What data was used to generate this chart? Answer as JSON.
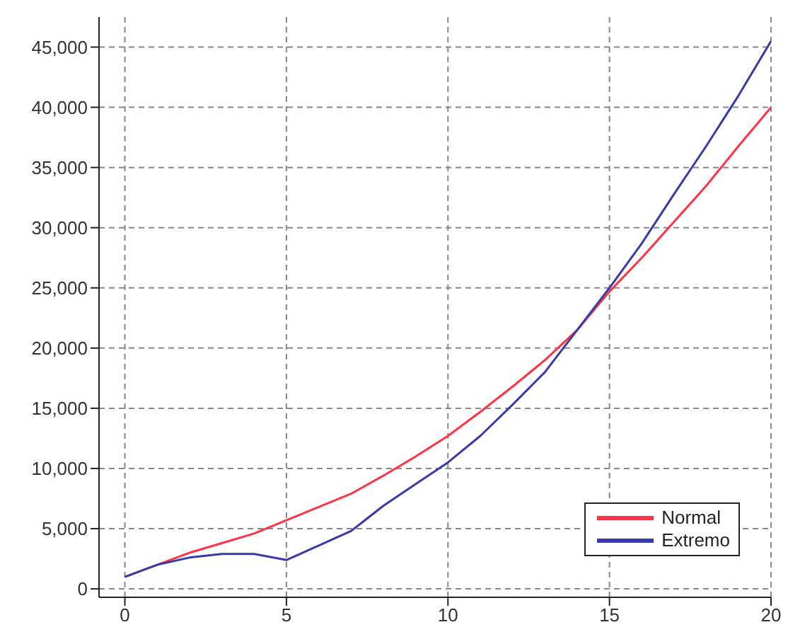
{
  "chart_data": {
    "type": "line",
    "x": [
      0,
      1,
      2,
      3,
      4,
      5,
      6,
      7,
      8,
      9,
      10,
      11,
      12,
      13,
      14,
      15,
      16,
      17,
      18,
      19,
      20
    ],
    "series": [
      {
        "name": "Normal",
        "color": "#ff3344",
        "values": [
          1000,
          2000,
          3000,
          3800,
          4600,
          5700,
          6800,
          7900,
          9400,
          11000,
          12700,
          14700,
          16800,
          19000,
          21500,
          24700,
          27500,
          30500,
          33500,
          36800,
          40000
        ]
      },
      {
        "name": "Extremo",
        "color": "#3a3aa8",
        "values": [
          1000,
          2000,
          2600,
          2900,
          2900,
          2400,
          3600,
          4800,
          6900,
          8700,
          10500,
          12700,
          15300,
          18000,
          21500,
          25000,
          28700,
          32800,
          36800,
          41000,
          45500
        ]
      }
    ],
    "xlim": [
      -0.8,
      20
    ],
    "xticks": [
      0,
      5,
      10,
      15,
      20
    ],
    "ylim": [
      -700,
      47500
    ],
    "yticks": [
      {
        "value": 0,
        "label": "0"
      },
      {
        "value": 5000,
        "label": "5,000"
      },
      {
        "value": 10000,
        "label": "10,000"
      },
      {
        "value": 15000,
        "label": "15,000"
      },
      {
        "value": 20000,
        "label": "20,000"
      },
      {
        "value": 25000,
        "label": "25,000"
      },
      {
        "value": 30000,
        "label": "30,000"
      },
      {
        "value": 35000,
        "label": "35,000"
      },
      {
        "value": 40000,
        "label": "40,000"
      },
      {
        "value": 45000,
        "label": "45,000"
      }
    ],
    "grid": true,
    "legend": "bottom right",
    "marker": "none",
    "line_style": "solid"
  }
}
